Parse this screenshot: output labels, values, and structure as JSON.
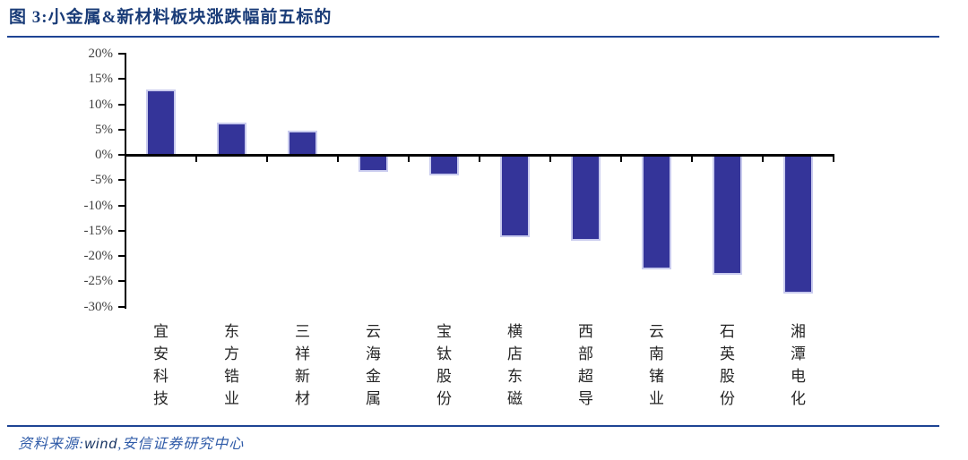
{
  "header": {
    "title": "图 3:小金属&新材料板块涨跌幅前五标的"
  },
  "chart_data": {
    "type": "bar",
    "categories": [
      "宜安科技",
      "东方锆业",
      "三祥新材",
      "云海金属",
      "宝钛股份",
      "横店东磁",
      "西部超导",
      "云南锗业",
      "石英股份",
      "湘潭电化"
    ],
    "values": [
      13.0,
      6.4,
      4.7,
      -3.3,
      -4.0,
      -16.2,
      -17.0,
      -22.6,
      -23.7,
      -27.5
    ],
    "unit": "%",
    "title": "",
    "xlabel": "",
    "ylabel": "",
    "ylim": [
      -30,
      20
    ],
    "y_tick_step": 5,
    "y_ticks": [
      "20%",
      "15%",
      "10%",
      "5%",
      "0%",
      "-5%",
      "-10%",
      "-15%",
      "-20%",
      "-25%",
      "-30%"
    ],
    "grid": false,
    "legend_position": "none",
    "bar_color": "#343499",
    "bar_edge_color": "#C9CBEE",
    "axis_color": "#000000"
  },
  "footer": {
    "prefix": "资料来源:",
    "source": "wind",
    "suffix": ",安信证券研究中心"
  }
}
